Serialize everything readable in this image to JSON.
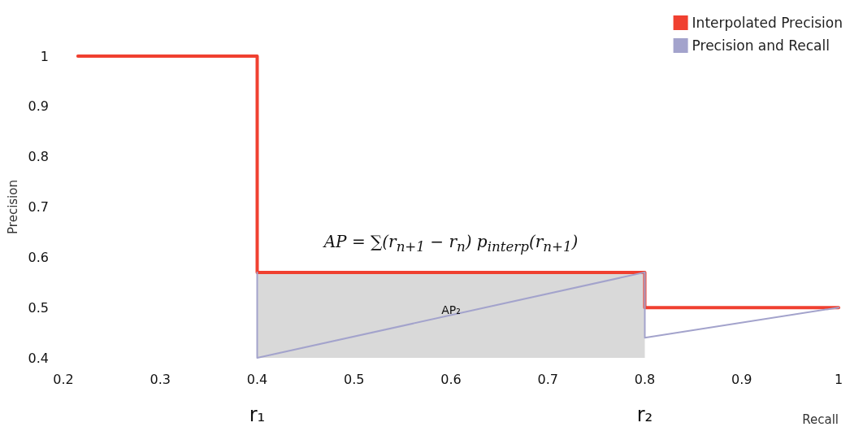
{
  "chart_data": {
    "type": "line",
    "xlabel": "Recall",
    "ylabel": "Precision",
    "xlim": [
      0.2,
      1
    ],
    "xticks": [
      0.2,
      0.3,
      0.4,
      0.5,
      0.6,
      0.7,
      0.8,
      0.9,
      1
    ],
    "ylim": [
      0.4,
      1
    ],
    "yticks": [
      0.4,
      0.5,
      0.6,
      0.7,
      0.8,
      0.9,
      1
    ],
    "grid": false,
    "legend": "top right",
    "marker": "none",
    "line_style": "solid",
    "series": [
      {
        "type": "area",
        "color": "#d9d9d9",
        "x": [
          0.4,
          0.8
        ],
        "values": [
          0.57,
          0.57
        ]
      },
      {
        "name": "Interpolated Precision",
        "color": "#f04030",
        "x": [
          0.215,
          0.4,
          0.4,
          0.8,
          0.8,
          1
        ],
        "values": [
          1,
          1,
          0.57,
          0.57,
          0.5,
          0.5
        ]
      },
      {
        "name": "Precision and Recall",
        "color": "#a3a3cc",
        "x": [
          0.4,
          0.4,
          0.8,
          0.8,
          1
        ],
        "values": [
          0.57,
          0.4,
          0.57,
          0.44,
          0.5
        ]
      }
    ],
    "annotations": [
      "AP = ∑(r$_{n+1}$ − r$_{n}$) p$_{interp}$(r$_{n+1}$)",
      "AP₂",
      "r₁",
      "r₂"
    ]
  }
}
